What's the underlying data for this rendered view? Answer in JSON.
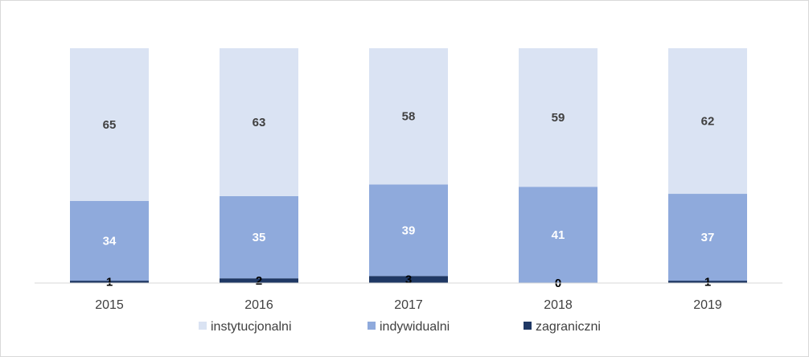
{
  "chart_data": {
    "type": "bar",
    "stacked": true,
    "categories": [
      "2015",
      "2016",
      "2017",
      "2018",
      "2019"
    ],
    "series": [
      {
        "name": "zagraniczni",
        "values": [
          1,
          2,
          3,
          0,
          1
        ],
        "color": "#1f3864",
        "label_color": "#000000"
      },
      {
        "name": "indywidualni",
        "values": [
          34,
          35,
          39,
          41,
          37
        ],
        "color": "#8faadc",
        "label_color": "#ffffff"
      },
      {
        "name": "instytucjonalni",
        "values": [
          65,
          63,
          58,
          59,
          62
        ],
        "color": "#dae3f3",
        "label_color": "#404040"
      }
    ],
    "legend_order": [
      "instytucjonalni",
      "indywidualni",
      "zagraniczni"
    ],
    "ylim": [
      0,
      100
    ],
    "y_axis_visible": false,
    "grid": false,
    "legend_position": "bottom",
    "title": "",
    "xlabel": "",
    "ylabel": ""
  }
}
